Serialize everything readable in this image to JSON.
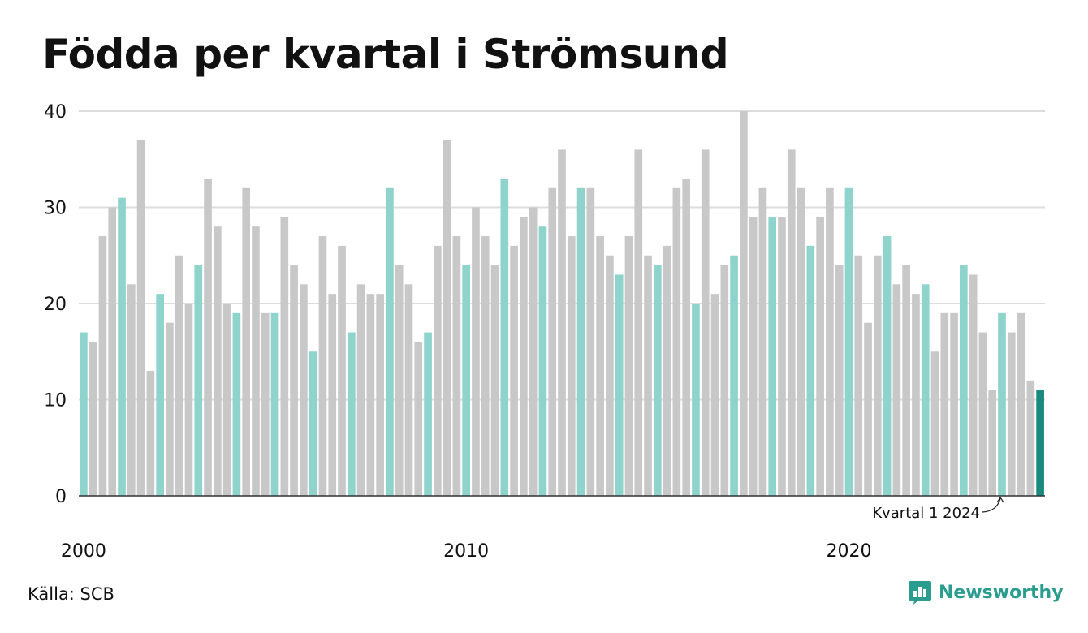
{
  "title": "Födda per kvartal i Strömsund",
  "source": "Källa: SCB",
  "brand": "Newsworthy",
  "colors": {
    "q1": "#8ed4cc",
    "other": "#c8c8c8",
    "latest": "#1a8a7e",
    "grid": "#dddddd",
    "axis": "#333333",
    "brand": "#2a9d8f"
  },
  "chart_data": {
    "type": "bar",
    "title": "Födda per kvartal i Strömsund",
    "x_start": "2000 Q1",
    "x_end": "2024 Q1",
    "x_tick_labels": [
      "2000",
      "2010",
      "2020"
    ],
    "y_ticks": [
      0,
      10,
      20,
      30,
      40
    ],
    "ylim": [
      0,
      40
    ],
    "grid": true,
    "annotation": "Kvartal 1 2024",
    "values": [
      17,
      16,
      27,
      30,
      31,
      22,
      37,
      13,
      21,
      18,
      25,
      20,
      24,
      33,
      28,
      20,
      19,
      32,
      28,
      19,
      19,
      29,
      24,
      22,
      15,
      27,
      21,
      26,
      17,
      22,
      21,
      21,
      32,
      24,
      22,
      16,
      17,
      26,
      37,
      27,
      24,
      30,
      27,
      24,
      33,
      26,
      29,
      30,
      28,
      32,
      36,
      27,
      32,
      32,
      27,
      25,
      23,
      27,
      36,
      25,
      24,
      26,
      32,
      33,
      20,
      36,
      21,
      24,
      25,
      40,
      29,
      32,
      29,
      29,
      36,
      32,
      26,
      29,
      32,
      24,
      32,
      25,
      18,
      25,
      27,
      22,
      24,
      21,
      22,
      15,
      19,
      19,
      24,
      23,
      17,
      11,
      19,
      17,
      19,
      12,
      11
    ]
  }
}
